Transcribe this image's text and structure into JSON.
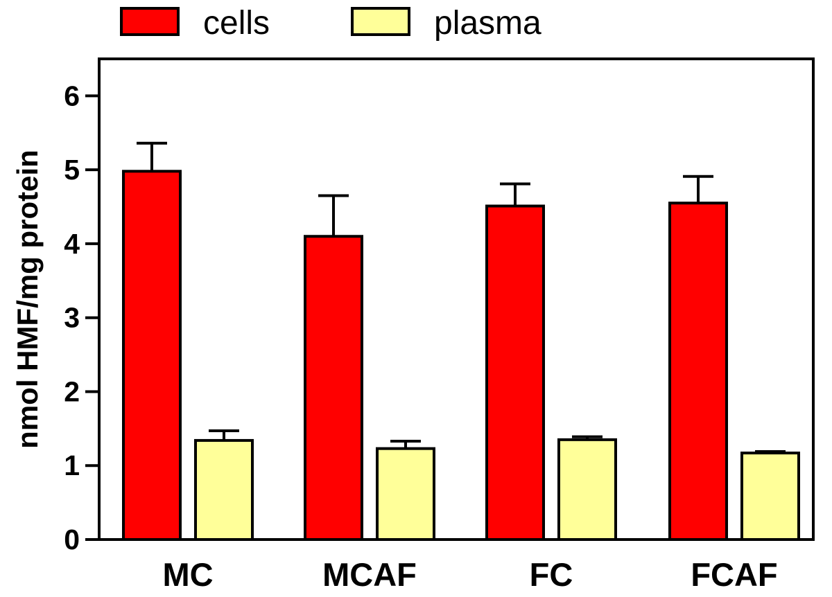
{
  "chart_data": {
    "type": "bar",
    "categories": [
      "MC",
      "MCAF",
      "FC",
      "FCAF"
    ],
    "series": [
      {
        "name": "cells",
        "color": "#ff0000",
        "values": [
          4.98,
          4.1,
          4.51,
          4.55
        ],
        "errors": [
          0.38,
          0.55,
          0.3,
          0.36
        ]
      },
      {
        "name": "plasma",
        "color": "#ffff99",
        "values": [
          1.34,
          1.23,
          1.35,
          1.17
        ],
        "errors": [
          0.13,
          0.1,
          0.04,
          0.02
        ]
      }
    ],
    "ylabel": "nmol HMF/mg protein",
    "xlabel": "",
    "ylim": [
      0,
      6.5
    ],
    "yticks": [
      0,
      1,
      2,
      3,
      4,
      5,
      6
    ],
    "grid": false,
    "legend_position": "top"
  }
}
